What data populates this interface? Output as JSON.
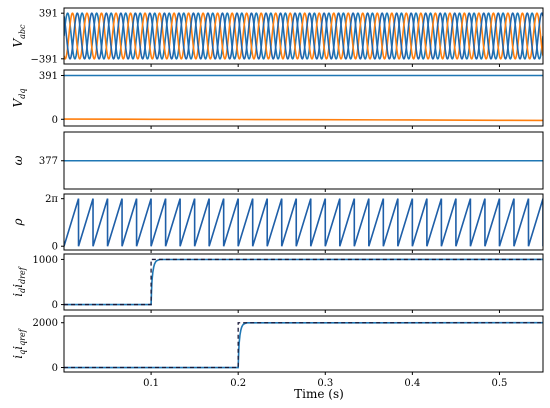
{
  "chart_data": [
    {
      "type": "line",
      "ylabel": "V",
      "ylabel_sub": "abc",
      "xlim": [
        0,
        0.55
      ],
      "ylim": [
        -480,
        480
      ],
      "yticks": [
        {
          "value": 391,
          "label": "391"
        },
        {
          "value": -391,
          "label": "−391"
        }
      ],
      "series": [
        {
          "phase": "a",
          "amplitude": 391,
          "frequency_hz": 60,
          "phase_deg": 0,
          "color": "#1f77b4"
        },
        {
          "phase": "b",
          "amplitude": 391,
          "frequency_hz": 60,
          "phase_deg": -120,
          "color": "#ff7f0e"
        },
        {
          "phase": "c",
          "amplitude": 391,
          "frequency_hz": 60,
          "phase_deg": 120,
          "color": "#2166ac"
        }
      ]
    },
    {
      "type": "line",
      "ylabel": "V",
      "ylabel_sub": "dq",
      "xlim": [
        0,
        0.55
      ],
      "ylim": [
        -60,
        440
      ],
      "yticks": [
        {
          "value": 391,
          "label": "391"
        },
        {
          "value": 0,
          "label": "0"
        }
      ],
      "series": [
        {
          "component": "d",
          "x": [
            0,
            0.55
          ],
          "y": [
            391,
            391
          ],
          "color": "#1f77b4"
        },
        {
          "component": "q",
          "x": [
            0,
            0.1,
            0.2,
            0.3,
            0.4,
            0.5,
            0.55
          ],
          "y": [
            2,
            0,
            -2,
            -4,
            -6,
            -9,
            -10
          ],
          "color": "#ff7f0e"
        }
      ]
    },
    {
      "type": "line",
      "ylabel": "ω",
      "xlim": [
        0,
        0.55
      ],
      "ylim": [
        320,
        435
      ],
      "yticks": [
        {
          "value": 377,
          "label": "377"
        }
      ],
      "series": [
        {
          "x": [
            0,
            0.55
          ],
          "y": [
            377,
            377
          ],
          "color": "#1f77b4"
        }
      ]
    },
    {
      "type": "line",
      "ylabel": "ρ",
      "xlim": [
        0,
        0.55
      ],
      "ylim": [
        -0.5,
        6.9
      ],
      "yticks": [
        {
          "value": 6.2832,
          "label": "2π"
        },
        {
          "value": 0,
          "label": "0"
        }
      ],
      "sawtooth": {
        "frequency_hz": 60,
        "min": 0,
        "max": 6.2832
      },
      "series": [
        {
          "color": "#1f5fa8"
        }
      ]
    },
    {
      "type": "line",
      "ylabel": "i",
      "ylabel_sub": "d",
      "ylabel_tail_sub": "dref",
      "xlim": [
        0,
        0.55
      ],
      "ylim": [
        -120,
        1120
      ],
      "yticks": [
        {
          "value": 1000,
          "label": "1000"
        },
        {
          "value": 0,
          "label": "0"
        }
      ],
      "series": [
        {
          "role": "measured",
          "x": [
            0,
            0.1,
            0.1005,
            0.101,
            0.102,
            0.103,
            0.104,
            0.105,
            0.106,
            0.108,
            0.11,
            0.55
          ],
          "y": [
            0,
            0,
            300,
            520,
            720,
            830,
            900,
            940,
            965,
            985,
            998,
            1000
          ],
          "color": "#1f77b4"
        },
        {
          "role": "reference",
          "x": [
            0,
            0.1,
            0.1,
            0.55
          ],
          "y": [
            0,
            0,
            1000,
            1000
          ],
          "color": "#1a1a3a",
          "dashed": true
        }
      ]
    },
    {
      "type": "line",
      "ylabel": "i",
      "ylabel_sub": "q",
      "ylabel_tail_sub": "qref",
      "xlim": [
        0,
        0.55
      ],
      "ylim": [
        -200,
        2300
      ],
      "yticks": [
        {
          "value": 2000,
          "label": "2000"
        },
        {
          "value": 0,
          "label": "0"
        }
      ],
      "xticks": [
        {
          "value": 0.1,
          "label": "0.1"
        },
        {
          "value": 0.2,
          "label": "0.2"
        },
        {
          "value": 0.3,
          "label": "0.3"
        },
        {
          "value": 0.4,
          "label": "0.4"
        },
        {
          "value": 0.5,
          "label": "0.5"
        }
      ],
      "xlabel": "Time (s)",
      "series": [
        {
          "role": "measured",
          "x": [
            0,
            0.2,
            0.2005,
            0.201,
            0.202,
            0.203,
            0.204,
            0.205,
            0.206,
            0.208,
            0.21,
            0.55
          ],
          "y": [
            0,
            0,
            600,
            1040,
            1440,
            1660,
            1800,
            1880,
            1930,
            1970,
            1996,
            2000
          ],
          "color": "#1f77b4"
        },
        {
          "role": "reference",
          "x": [
            0,
            0.2,
            0.2,
            0.55
          ],
          "y": [
            0,
            0,
            2000,
            2000
          ],
          "color": "#1a1a3a",
          "dashed": true
        }
      ]
    }
  ]
}
